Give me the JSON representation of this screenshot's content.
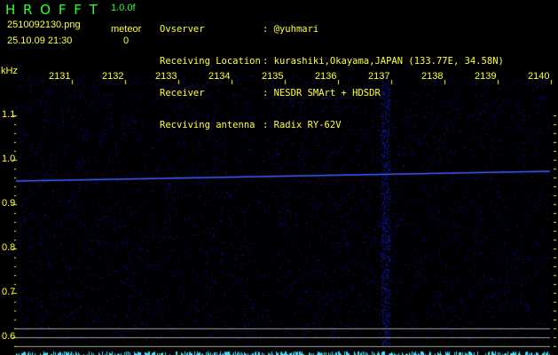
{
  "header": {
    "app_name": "H R O F F T",
    "version": "1.0.0f",
    "filename": "2510092130.png",
    "datetime": "25.10.09 21:30",
    "meteor_label": "meteor",
    "meteor_count": "0"
  },
  "station": [
    {
      "label": "Ovserver",
      "value": "@yuhmari"
    },
    {
      "label": "Receiving Location",
      "value": "kurashiki,Okayama,JAPAN (133.77E, 34.58N)"
    },
    {
      "label": "Receiver",
      "value": "NESDR SMArt + HDSDR"
    },
    {
      "label": "Recviving antenna",
      "value": "Radix RY-62V"
    }
  ],
  "axes": {
    "unit": "kHz",
    "x_ticks": [
      "2131",
      "2132",
      "2133",
      "2134",
      "2135",
      "2136",
      "2137",
      "2138",
      "2139",
      "2140"
    ],
    "y_ticks": [
      "1.1",
      "1.0",
      "0.9",
      "0.8",
      "0.7",
      "0.6"
    ]
  },
  "colors": {
    "label": "#ffff30",
    "logo": "#30ff30",
    "noise": "#2020c0",
    "trace": "#4060ff",
    "bottom_bars": "#40e0ff",
    "gridlines": "#a0a0a0"
  }
}
